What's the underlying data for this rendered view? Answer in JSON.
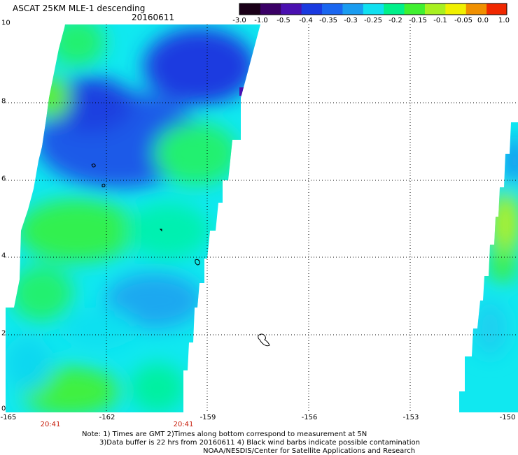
{
  "title": "ASCAT 25KM MLE-1 descending",
  "date": "20160611",
  "colorbar": {
    "labels": [
      "-3.0",
      "-1.0",
      "-0.5",
      "-0.4",
      "-0.35",
      "-0.3",
      "-0.25",
      "-0.2",
      "-0.15",
      "-0.1",
      "-0.05",
      "0.0",
      "1.0"
    ],
    "colors": [
      "#1a0018",
      "#3a0066",
      "#4a10b0",
      "#1a3ae0",
      "#1a66f0",
      "#1a9cf0",
      "#10e0f0",
      "#00f08a",
      "#40f030",
      "#a8f020",
      "#f0f000",
      "#f09000",
      "#f02800"
    ]
  },
  "axes": {
    "lat_labels": [
      "10",
      "8",
      "6",
      "4",
      "2",
      "0"
    ],
    "lon_labels": [
      "-165",
      "-162",
      "-159",
      "-156",
      "-153",
      "-150"
    ],
    "lat_range": [
      0,
      10
    ],
    "lon_range": [
      -165,
      -150
    ],
    "grid": true
  },
  "times": [
    "20:41",
    "20:41"
  ],
  "notes": {
    "line1": "Note: 1) Times are GMT 2)Times along bottom correspond to measurement at 5N",
    "line2": "3)Data buffer is 22 hrs from 20160611 4) Black wind barbs indicate possible contamination",
    "line3": "NOAA/NESDIS/Center for Satellite Applications and Research"
  },
  "palette": {
    "deep_blue": "#1a3ae0",
    "blue": "#1a66f0",
    "sky": "#1a9cf0",
    "cyan": "#10e8f0",
    "aqua": "#00f0c0",
    "green": "#20f070",
    "lime": "#60f020",
    "yellowgreen": "#b0f020",
    "purple": "#4a10b0"
  }
}
